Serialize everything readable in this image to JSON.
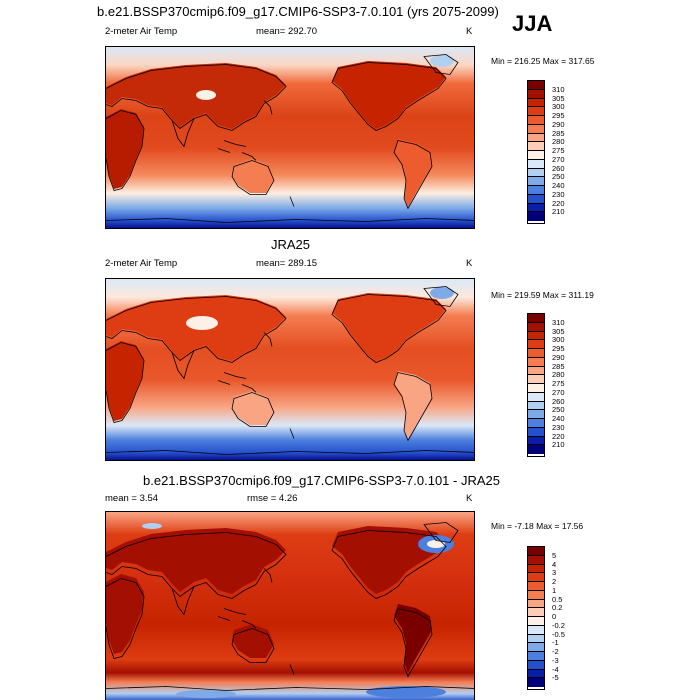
{
  "season": "JJA",
  "panels": [
    {
      "title": "b.e21.BSSP370cmip6.f09_g17.CMIP6-SSP3-7.0.101 (yrs 2075-2099)",
      "left_label": "2-meter Air Temp",
      "center_label": "mean= 292.70",
      "units": "K",
      "minmax": "Min = 216.25 Max = 317.65",
      "colorbar": {
        "labels": [
          "310",
          "305",
          "300",
          "295",
          "290",
          "285",
          "280",
          "275",
          "270",
          "260",
          "250",
          "240",
          "230",
          "220",
          "210"
        ],
        "colors": [
          "#7a0000",
          "#a30f00",
          "#c62400",
          "#de3d13",
          "#ec5c2e",
          "#f47e52",
          "#f9a584",
          "#fccdb7",
          "#fdf0e6",
          "#dbe8f7",
          "#b1cff0",
          "#7eabe7",
          "#4d80de",
          "#2550cd",
          "#0a1eaa",
          "#00007a"
        ]
      }
    },
    {
      "title": "JRA25",
      "left_label": "2-meter Air Temp",
      "center_label": "mean= 289.15",
      "units": "K",
      "minmax": "Min = 219.59 Max = 311.19",
      "colorbar": {
        "labels": [
          "310",
          "305",
          "300",
          "295",
          "290",
          "285",
          "280",
          "275",
          "270",
          "260",
          "250",
          "240",
          "230",
          "220",
          "210"
        ],
        "colors": [
          "#7a0000",
          "#a30f00",
          "#c62400",
          "#de3d13",
          "#ec5c2e",
          "#f47e52",
          "#f9a584",
          "#fccdb7",
          "#fdf0e6",
          "#dbe8f7",
          "#b1cff0",
          "#7eabe7",
          "#4d80de",
          "#2550cd",
          "#0a1eaa",
          "#00007a"
        ]
      }
    },
    {
      "title": "b.e21.BSSP370cmip6.f09_g17.CMIP6-SSP3-7.0.101 - JRA25",
      "left_label": "mean =   3.54",
      "center_label": "rmse =   4.26",
      "units": "K",
      "minmax": "Min =  -7.18 Max =  17.56",
      "colorbar": {
        "labels": [
          "5",
          "4",
          "3",
          "2",
          "1",
          "0.5",
          "0.2",
          "0",
          "-0.2",
          "-0.5",
          "-1",
          "-2",
          "-3",
          "-4",
          "-5"
        ],
        "colors": [
          "#7a0000",
          "#a30f00",
          "#c62400",
          "#de3d13",
          "#ec5c2e",
          "#f47e52",
          "#f9a584",
          "#fccdb7",
          "#fdf0e6",
          "#dbe8f7",
          "#b1cff0",
          "#7eabe7",
          "#4d80de",
          "#2550cd",
          "#0a1eaa",
          "#00007a"
        ]
      }
    }
  ]
}
